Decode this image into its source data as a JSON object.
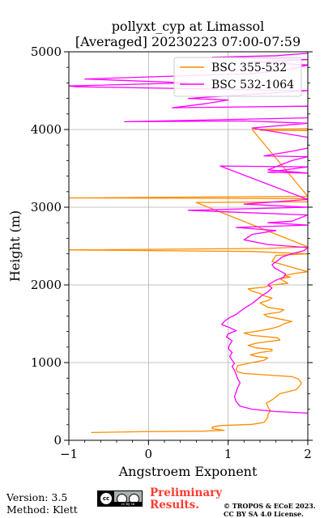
{
  "chart_data": {
    "type": "line",
    "title": "pollyxt_cyp at Limassol",
    "subtitle": "[Averaged] 20230223 07:00-07:59",
    "xlabel": "Angstroem Exponent",
    "ylabel": "Height (m)",
    "xlim": [
      -1,
      2
    ],
    "ylim": [
      0,
      5000
    ],
    "xticks": [
      -1,
      0,
      1,
      2
    ],
    "yticks": [
      0,
      1000,
      2000,
      3000,
      4000,
      5000
    ],
    "xtick_labels": [
      "−1",
      "0",
      "1",
      "2"
    ],
    "ytick_labels": [
      "0",
      "1000",
      "2000",
      "3000",
      "4000",
      "5000"
    ],
    "grid": true,
    "legend_position": "top-right",
    "series": [
      {
        "name": "BSC 355-532",
        "color": "#ff8c00",
        "points": [
          [
            -0.72,
            100
          ],
          [
            -0.1,
            110
          ],
          [
            0.7,
            118
          ],
          [
            0.95,
            128
          ],
          [
            0.8,
            150
          ],
          [
            0.8,
            170
          ],
          [
            0.9,
            190
          ],
          [
            1.3,
            205
          ],
          [
            1.45,
            230
          ],
          [
            1.48,
            270
          ],
          [
            1.5,
            300
          ],
          [
            1.5,
            330
          ],
          [
            1.53,
            380
          ],
          [
            1.5,
            430
          ],
          [
            1.48,
            480
          ],
          [
            1.55,
            520
          ],
          [
            1.6,
            560
          ],
          [
            1.65,
            600
          ],
          [
            1.85,
            650
          ],
          [
            1.9,
            700
          ],
          [
            1.92,
            740
          ],
          [
            1.88,
            790
          ],
          [
            1.8,
            820
          ],
          [
            1.5,
            840
          ],
          [
            1.2,
            860
          ],
          [
            1.12,
            880
          ],
          [
            1.1,
            910
          ],
          [
            1.12,
            960
          ],
          [
            1.3,
            1000
          ],
          [
            1.45,
            1030
          ],
          [
            1.5,
            1060
          ],
          [
            1.35,
            1080
          ],
          [
            1.28,
            1100
          ],
          [
            1.4,
            1130
          ],
          [
            1.55,
            1150
          ],
          [
            1.55,
            1170
          ],
          [
            1.35,
            1190
          ],
          [
            1.25,
            1220
          ],
          [
            1.35,
            1250
          ],
          [
            1.65,
            1290
          ],
          [
            1.62,
            1320
          ],
          [
            1.3,
            1350
          ],
          [
            1.2,
            1380
          ],
          [
            1.4,
            1410
          ],
          [
            1.55,
            1440
          ],
          [
            1.65,
            1470
          ],
          [
            1.7,
            1500
          ],
          [
            1.8,
            1530
          ],
          [
            1.65,
            1560
          ],
          [
            1.5,
            1590
          ],
          [
            1.45,
            1620
          ],
          [
            1.65,
            1650
          ],
          [
            1.7,
            1680
          ],
          [
            1.5,
            1710
          ],
          [
            1.45,
            1740
          ],
          [
            1.4,
            1770
          ],
          [
            1.5,
            1800
          ],
          [
            1.55,
            1830
          ],
          [
            1.45,
            1860
          ],
          [
            1.4,
            1890
          ],
          [
            1.3,
            1920
          ],
          [
            1.25,
            1950
          ],
          [
            1.45,
            1970
          ],
          [
            1.55,
            2000
          ],
          [
            1.75,
            2020
          ],
          [
            1.7,
            2050
          ],
          [
            1.65,
            2080
          ],
          [
            1.78,
            2100
          ],
          [
            1.7,
            2120
          ],
          [
            1.85,
            2150
          ],
          [
            2.0,
            2170
          ],
          [
            1.55,
            2300
          ],
          [
            1.6,
            2380
          ],
          [
            2.0,
            2400
          ],
          [
            1.3,
            2430
          ],
          [
            -1.0,
            2450
          ],
          [
            1.5,
            2470
          ],
          [
            2.0,
            2490
          ],
          [
            0.6,
            3060
          ],
          [
            2.0,
            3070
          ],
          [
            2.0,
            3110
          ],
          [
            -1.0,
            3120
          ],
          [
            2.0,
            3140
          ],
          [
            1.3,
            4000
          ],
          [
            2.0,
            4010
          ],
          [
            2.0,
            3985
          ],
          [
            1.4,
            3990
          ]
        ]
      },
      {
        "name": "BSC 532-1064",
        "color": "#ff00ff",
        "points": [
          [
            2.0,
            350
          ],
          [
            1.6,
            370
          ],
          [
            1.3,
            400
          ],
          [
            1.15,
            440
          ],
          [
            1.1,
            500
          ],
          [
            1.08,
            560
          ],
          [
            1.1,
            620
          ],
          [
            1.12,
            680
          ],
          [
            1.15,
            740
          ],
          [
            1.12,
            790
          ],
          [
            1.1,
            850
          ],
          [
            1.08,
            900
          ],
          [
            1.05,
            950
          ],
          [
            1.08,
            990
          ],
          [
            1.05,
            1030
          ],
          [
            1.02,
            1080
          ],
          [
            1.05,
            1130
          ],
          [
            1.0,
            1180
          ],
          [
            1.02,
            1230
          ],
          [
            1.05,
            1280
          ],
          [
            0.98,
            1330
          ],
          [
            1.0,
            1370
          ],
          [
            1.1,
            1410
          ],
          [
            1.02,
            1450
          ],
          [
            0.92,
            1490
          ],
          [
            0.95,
            1530
          ],
          [
            1.02,
            1580
          ],
          [
            1.1,
            1620
          ],
          [
            1.15,
            1660
          ],
          [
            1.22,
            1710
          ],
          [
            1.3,
            1760
          ],
          [
            1.35,
            1800
          ],
          [
            1.42,
            1860
          ],
          [
            1.5,
            1910
          ],
          [
            1.55,
            1960
          ],
          [
            1.5,
            2000
          ],
          [
            1.6,
            2060
          ],
          [
            1.7,
            2100
          ],
          [
            1.72,
            2140
          ],
          [
            1.65,
            2180
          ],
          [
            1.58,
            2220
          ],
          [
            1.55,
            2260
          ],
          [
            1.62,
            2310
          ],
          [
            1.68,
            2360
          ],
          [
            1.8,
            2400
          ],
          [
            1.95,
            2440
          ],
          [
            2.0,
            2480
          ],
          [
            1.5,
            2520
          ],
          [
            1.2,
            2580
          ],
          [
            1.3,
            2650
          ],
          [
            1.6,
            2700
          ],
          [
            1.1,
            2740
          ],
          [
            2.0,
            2770
          ],
          [
            1.5,
            2800
          ],
          [
            1.8,
            2820
          ],
          [
            2.0,
            2900
          ],
          [
            1.0,
            2940
          ],
          [
            0.5,
            2960
          ],
          [
            2.0,
            3000
          ],
          [
            1.2,
            3040
          ],
          [
            2.0,
            3100
          ],
          [
            0.9,
            3530
          ],
          [
            2.0,
            3520
          ],
          [
            1.5,
            3450
          ],
          [
            2.0,
            3440
          ],
          [
            1.5,
            3480
          ],
          [
            1.8,
            3600
          ],
          [
            2.0,
            3650
          ],
          [
            1.45,
            3660
          ],
          [
            1.8,
            3720
          ],
          [
            2.0,
            3760
          ],
          [
            2.0,
            3900
          ],
          [
            1.3,
            4020
          ],
          [
            2.0,
            4080
          ],
          [
            1.2,
            4110
          ],
          [
            -0.3,
            4100
          ],
          [
            2.0,
            4150
          ],
          [
            2.0,
            4300
          ],
          [
            0.3,
            4280
          ],
          [
            0.7,
            4330
          ],
          [
            1.0,
            4380
          ],
          [
            0.5,
            4400
          ],
          [
            2.0,
            4500
          ],
          [
            -0.9,
            4550
          ],
          [
            -1.0,
            4560
          ],
          [
            0.5,
            4600
          ],
          [
            -0.8,
            4650
          ],
          [
            1.3,
            4720
          ],
          [
            1.75,
            4770
          ],
          [
            2.0,
            4830
          ],
          [
            1.3,
            4870
          ],
          [
            2.0,
            4900
          ],
          [
            0.8,
            4930
          ],
          [
            1.6,
            4950
          ],
          [
            2.0,
            4980
          ]
        ]
      }
    ]
  },
  "footer": {
    "version": "Version: 3.5",
    "method": "Method: Klett",
    "license_badge": "cc by sa",
    "preliminary_line1": "Preliminary",
    "preliminary_line2": "Results.",
    "copyright_line1": "© TROPOS & ECoE 2023.",
    "copyright_line2": "CC BY SA 4.0 License."
  },
  "colors": {
    "preliminary_text": "#ff3b30",
    "grid": "#b0b0b0",
    "background": "#ffffff"
  }
}
